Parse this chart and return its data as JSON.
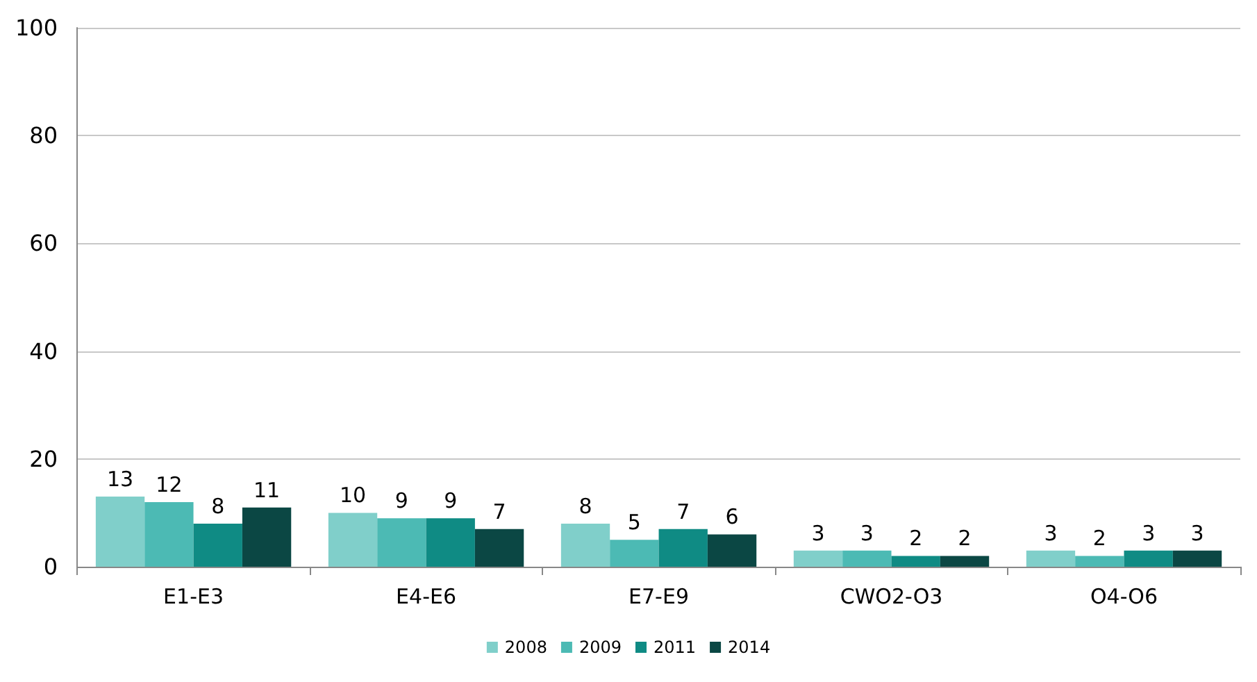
{
  "chart_data": {
    "type": "bar",
    "categories": [
      "E1-E3",
      "E4-E6",
      "E7-E9",
      "CWO2-O3",
      "O4-O6"
    ],
    "series": [
      {
        "name": "2008",
        "color": "#80cfca",
        "values": [
          13,
          10,
          8,
          3,
          3
        ]
      },
      {
        "name": "2009",
        "color": "#4cbab4",
        "values": [
          12,
          9,
          5,
          3,
          2
        ]
      },
      {
        "name": "2011",
        "color": "#0f8b84",
        "values": [
          8,
          9,
          7,
          2,
          3
        ]
      },
      {
        "name": "2014",
        "color": "#0b4744",
        "values": [
          11,
          7,
          6,
          2,
          3
        ]
      }
    ],
    "ylim": [
      0,
      100
    ],
    "yticks": [
      0,
      20,
      40,
      60,
      80,
      100
    ],
    "grid": "y",
    "legend": "bottom",
    "data_labels": true
  }
}
